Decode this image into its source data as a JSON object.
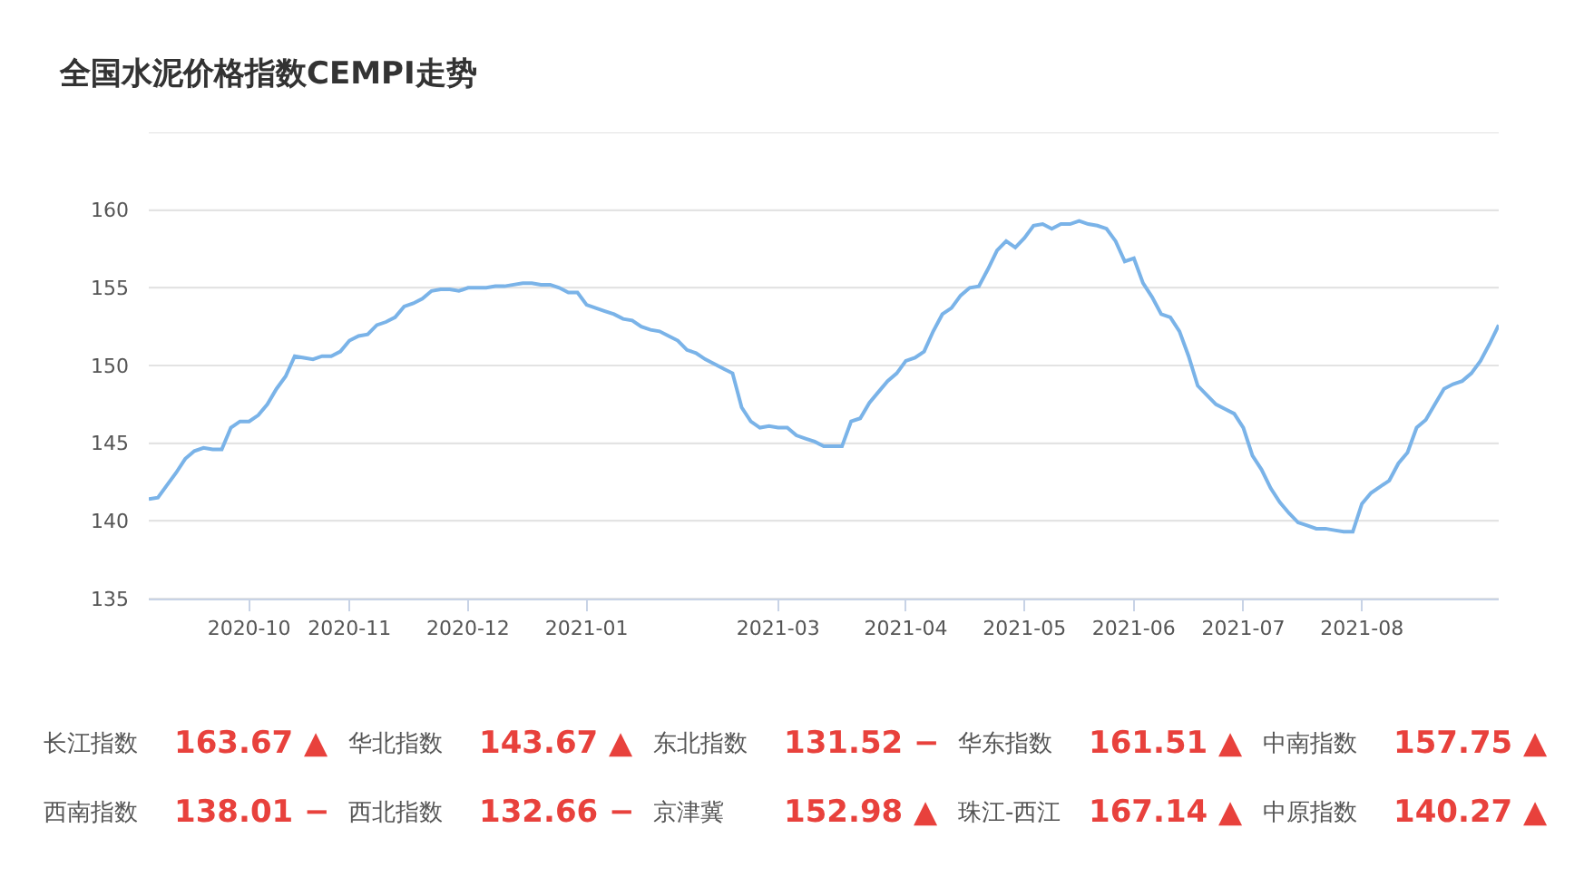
{
  "chart_data": {
    "type": "line",
    "title": "全国水泥价格指数CEMPI走势",
    "categories": [
      null,
      null,
      null,
      null,
      null,
      null,
      null,
      null,
      null,
      null,
      null,
      "2020-10",
      null,
      null,
      null,
      null,
      null,
      null,
      null,
      null,
      null,
      null,
      "2020-11",
      null,
      null,
      null,
      null,
      null,
      null,
      null,
      null,
      null,
      null,
      null,
      null,
      "2020-12",
      null,
      null,
      null,
      null,
      null,
      null,
      null,
      null,
      null,
      null,
      null,
      null,
      "2021-01",
      null,
      null,
      null,
      null,
      null,
      null,
      null,
      null,
      null,
      null,
      null,
      null,
      null,
      null,
      null,
      null,
      null,
      null,
      null,
      null,
      "2021-03",
      null,
      null,
      null,
      null,
      null,
      null,
      null,
      null,
      null,
      null,
      null,
      null,
      null,
      "2021-04",
      null,
      null,
      null,
      null,
      null,
      null,
      null,
      null,
      null,
      null,
      null,
      null,
      "2021-05",
      null,
      null,
      null,
      null,
      null,
      null,
      null,
      null,
      null,
      null,
      null,
      "2021-06",
      null,
      null,
      null,
      null,
      null,
      null,
      null,
      null,
      null,
      null,
      null,
      "2021-07",
      null,
      null,
      null,
      null,
      null,
      null,
      null,
      null,
      null,
      null,
      null,
      null,
      "2021-08",
      null,
      null,
      null,
      null,
      null,
      null,
      null,
      null,
      null,
      null,
      null,
      null,
      null,
      null,
      null
    ],
    "series": [
      {
        "color": "#7ab3e8",
        "values": [
          141.4,
          141.5,
          142.3,
          143.1,
          144.0,
          144.5,
          144.7,
          144.6,
          144.6,
          146.0,
          146.4,
          146.4,
          146.8,
          147.5,
          148.5,
          149.3,
          150.6,
          150.5,
          150.4,
          150.6,
          150.6,
          150.9,
          151.6,
          151.9,
          152.0,
          152.6,
          152.8,
          153.1,
          153.8,
          154.0,
          154.3,
          154.8,
          154.9,
          154.9,
          154.8,
          155.0,
          155.0,
          155.0,
          155.1,
          155.1,
          155.2,
          155.3,
          155.3,
          155.2,
          155.2,
          155.0,
          154.7,
          154.7,
          153.9,
          153.7,
          153.5,
          153.3,
          153.0,
          152.9,
          152.5,
          152.3,
          152.2,
          151.9,
          151.6,
          151.0,
          150.8,
          150.4,
          150.1,
          149.8,
          149.5,
          147.3,
          146.4,
          146.0,
          146.1,
          146.0,
          146.0,
          145.5,
          145.3,
          145.1,
          144.8,
          144.8,
          144.8,
          146.4,
          146.6,
          147.6,
          148.3,
          149.0,
          149.5,
          150.3,
          150.5,
          150.9,
          152.2,
          153.3,
          153.7,
          154.5,
          155.0,
          155.1,
          156.2,
          157.4,
          158.0,
          157.6,
          158.2,
          159.0,
          159.1,
          158.8,
          159.1,
          159.1,
          159.3,
          159.1,
          159.0,
          158.8,
          158.0,
          156.7,
          156.9,
          155.3,
          154.4,
          153.3,
          153.1,
          152.2,
          150.6,
          148.7,
          148.1,
          147.5,
          147.2,
          146.9,
          146.0,
          144.2,
          143.3,
          142.1,
          141.2,
          140.5,
          139.9,
          139.7,
          139.5,
          139.5,
          139.4,
          139.3,
          139.3,
          141.1,
          141.8,
          142.2,
          142.6,
          143.7,
          144.4,
          146.0,
          146.5,
          147.5,
          148.5,
          148.8,
          149.0,
          149.5,
          150.3,
          151.4,
          152.6
        ]
      }
    ],
    "ylim": [
      135,
      165
    ],
    "yticks": [
      135,
      140,
      145,
      150,
      155,
      160,
      {
        "value": 165,
        "label": null
      }
    ],
    "grid": "y",
    "marker": "none",
    "line_style": "solid",
    "annotations": [
      "长江指数",
      "163.67 ▲",
      "华北指数",
      "143.67 ▲",
      "东北指数",
      "131.52 −",
      "华东指数",
      "161.51 ▲",
      "中南指数",
      "157.75 ▲",
      "西南指数",
      "138.01 −",
      "西北指数",
      "132.66 −",
      "京津冀",
      "152.98 ▲",
      "珠江-西江",
      "167.14 ▲",
      "中原指数",
      "140.27 ▲"
    ]
  }
}
